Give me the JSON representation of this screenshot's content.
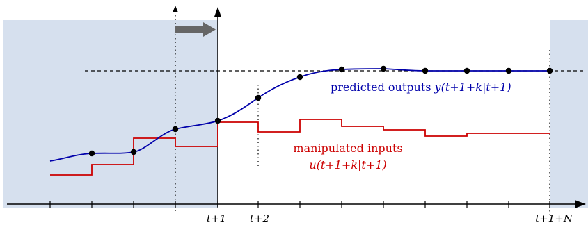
{
  "labels": {
    "outputs_text": "predicted outputs ",
    "outputs_math": "y(t+1+k|t+1)",
    "inputs_line1": "manipulated inputs",
    "inputs_line2": "u(t+1+k|t+1)"
  },
  "axis_labels": {
    "t_plus_1": "t+1",
    "t_plus_2": "t+2",
    "t_plus_1_plus_N": "t+1+N"
  },
  "colors": {
    "output_curve": "#0000aa",
    "input_steps": "#cc0000",
    "shaded_region": "#d6e0ee",
    "arrow": "#666666"
  },
  "icons": {
    "shift_arrow": "right-arrow-icon"
  }
}
